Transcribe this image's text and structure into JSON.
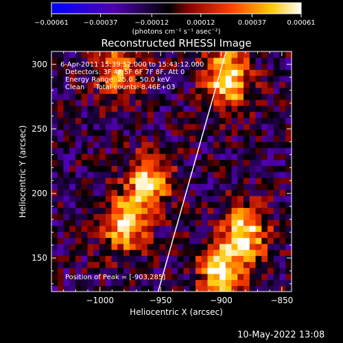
{
  "chart_data": {
    "type": "heatmap",
    "title": "Reconstructed RHESSI Image",
    "xlabel": "Heliocentric X (arcsec)",
    "ylabel": "Heliocentric Y (arcsec)",
    "xlim": [
      -1040,
      -842
    ],
    "ylim": [
      124,
      310
    ],
    "x_ticks": [
      -1000,
      -950,
      -900,
      -850
    ],
    "x_tick_labels": [
      "−1000",
      "−950",
      "−900",
      "−850"
    ],
    "y_ticks": [
      150,
      200,
      250,
      300
    ],
    "y_tick_labels": [
      "150",
      "200",
      "250",
      "300"
    ],
    "colorbar": {
      "range": [
        -0.00061,
        0.00061
      ],
      "tick_values": [
        -0.00061,
        -0.00037,
        -0.00012,
        0.00012,
        0.00037,
        0.00061
      ],
      "tick_labels": [
        "−0.00061",
        "−0.00037",
        "−0.00012",
        "0.00012",
        "0.00037",
        "0.00061"
      ],
      "units": "(photons cm⁻² s⁻¹ asec⁻²)",
      "colors": [
        "#0000ff",
        "#5000b0",
        "#000000",
        "#8a0000",
        "#ff4000",
        "#ffc800",
        "#ffffff"
      ]
    },
    "annotations": [
      "6-Apr-2011 15:39:52.000 to 15:43:12.000",
      "Detectors: 3F 4F 5F 6F 7F 8F, Att 0",
      "Energy Range: 25.0 - 50.0 keV",
      "Clean     Total counts: 8.46E+03"
    ],
    "peak_label": "Position of Peak = [-903,285]",
    "peak": [
      -903,
      285
    ],
    "limb_line": [
      [
        -952,
        124
      ],
      [
        -896,
        310
      ]
    ],
    "bright_sources": [
      {
        "x": -985,
        "y": 295,
        "value": 0.0004
      },
      {
        "x": -895,
        "y": 290,
        "value": 0.00061
      },
      {
        "x": -960,
        "y": 210,
        "value": 0.0005
      },
      {
        "x": -980,
        "y": 175,
        "value": 0.0005
      },
      {
        "x": -880,
        "y": 170,
        "value": 0.00055
      },
      {
        "x": -900,
        "y": 140,
        "value": 0.00055
      }
    ],
    "background_level": -0.00012
  },
  "footer": {
    "timestamp": "10-May-2022 13:08"
  }
}
